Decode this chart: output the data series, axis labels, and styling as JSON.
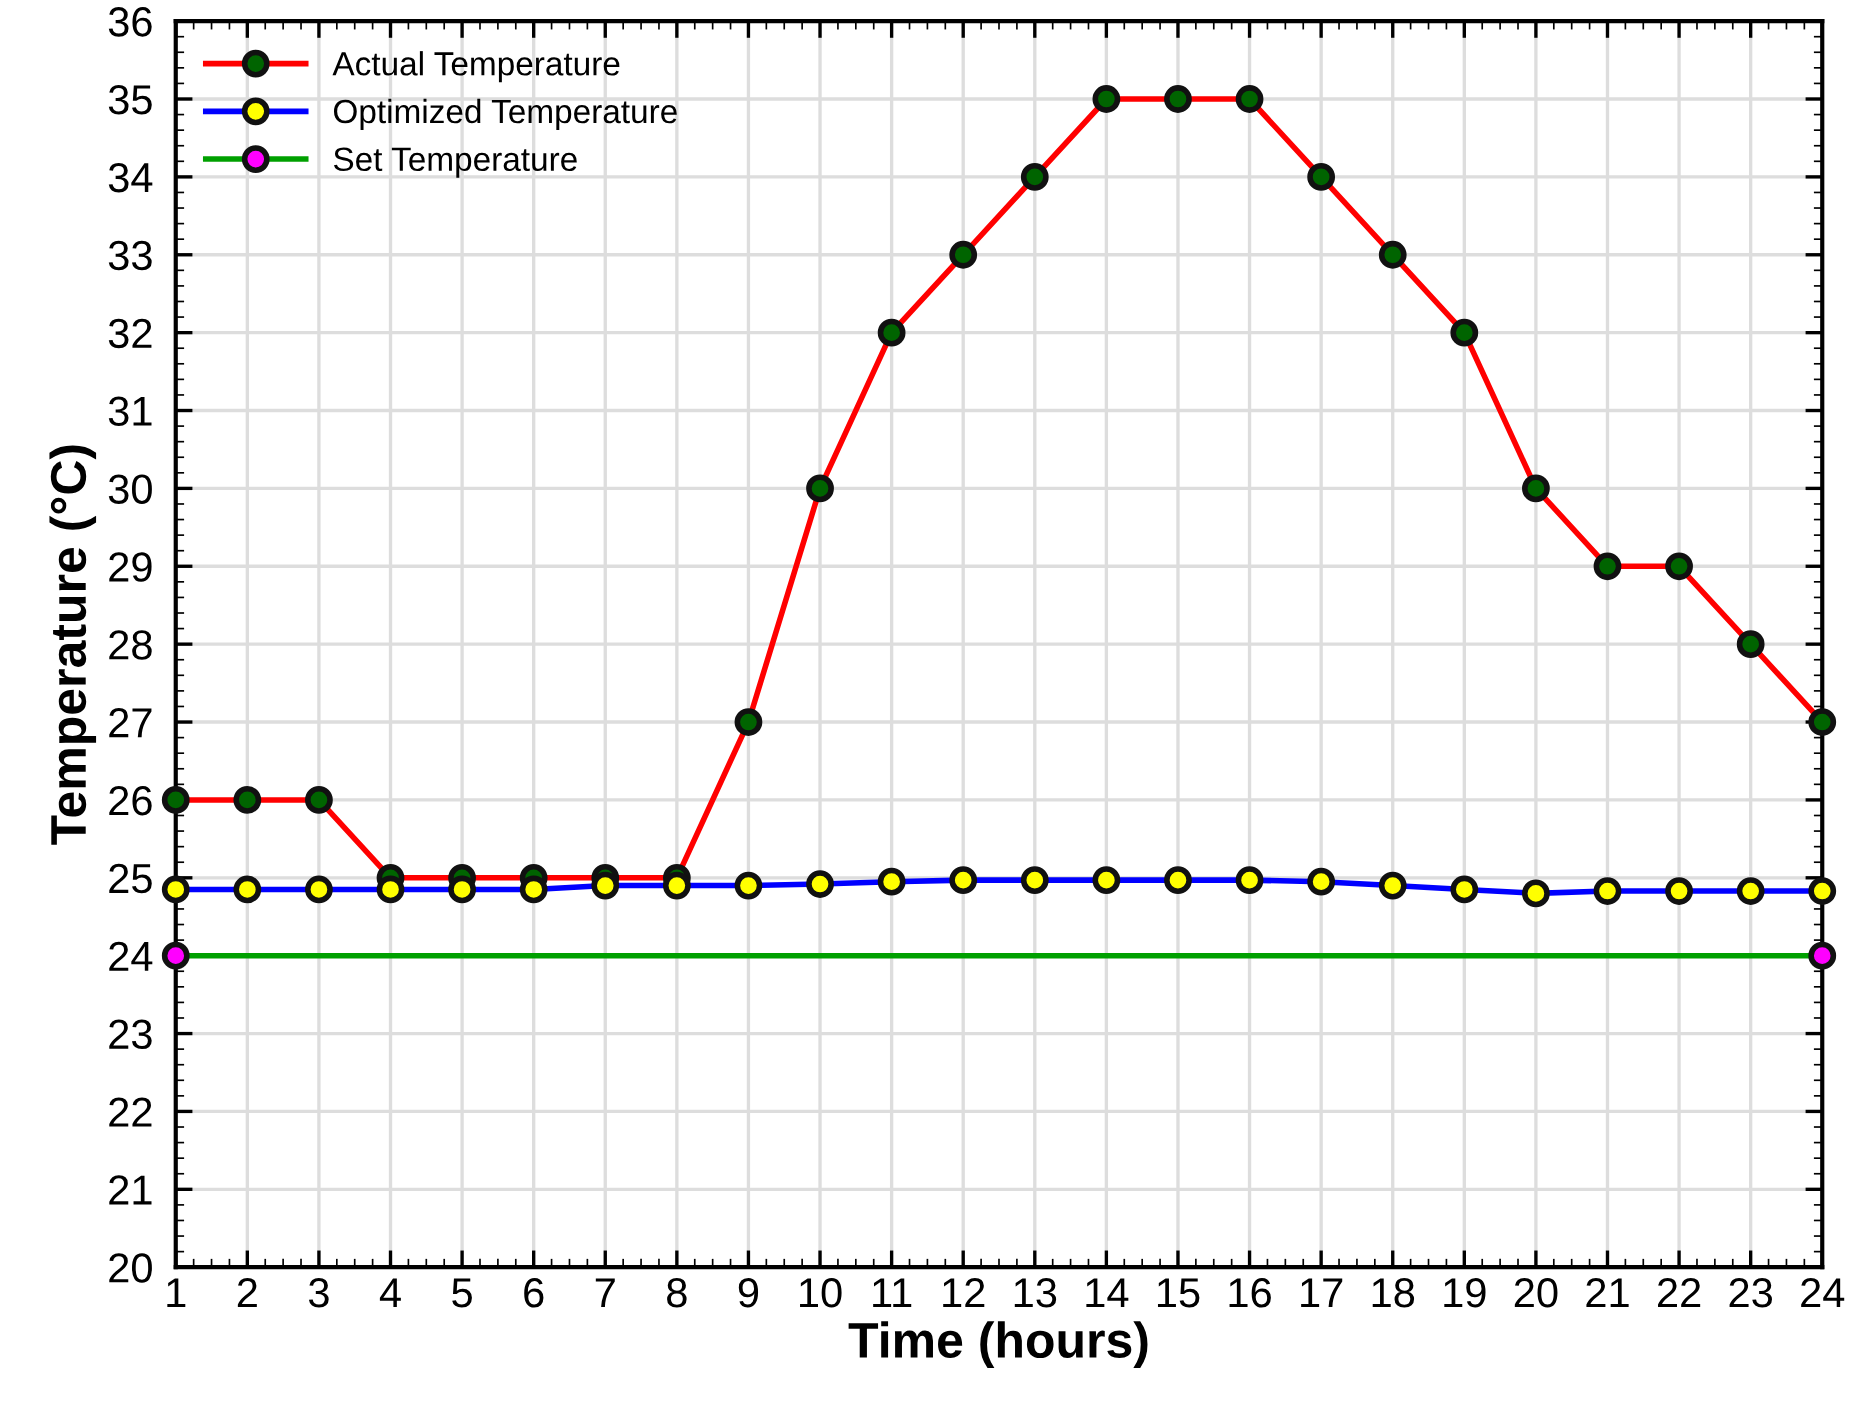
{
  "chart_data": {
    "type": "line",
    "xlabel": "Time (hours)",
    "ylabel": "Temperature (°C)",
    "x": [
      1,
      2,
      3,
      4,
      5,
      6,
      7,
      8,
      9,
      10,
      11,
      12,
      13,
      14,
      15,
      16,
      17,
      18,
      19,
      20,
      21,
      22,
      23,
      24
    ],
    "series": [
      {
        "name": "Actual Temperature",
        "color": "#ff0000",
        "values": [
          26,
          26,
          26,
          25,
          25,
          25,
          25,
          25,
          27,
          30,
          32,
          33,
          34,
          35,
          35,
          35,
          34,
          33,
          32,
          30,
          29,
          29,
          28,
          27
        ]
      },
      {
        "name": "Optimized Temperature",
        "color": "#0000ff",
        "values": [
          24.85,
          24.85,
          24.85,
          24.85,
          24.85,
          24.85,
          24.9,
          24.9,
          24.9,
          24.92,
          24.95,
          24.97,
          24.97,
          24.97,
          24.97,
          24.97,
          24.95,
          24.9,
          24.85,
          24.8,
          24.83,
          24.83,
          24.83,
          24.83
        ]
      },
      {
        "name": "Set Temperature",
        "color": "#00a000",
        "x": [
          1,
          24
        ],
        "values": [
          24,
          24
        ]
      }
    ],
    "xlim": [
      1,
      24
    ],
    "xticks": [
      1,
      2,
      3,
      4,
      5,
      6,
      7,
      8,
      9,
      10,
      11,
      12,
      13,
      14,
      15,
      16,
      17,
      18,
      19,
      20,
      21,
      22,
      23,
      24
    ],
    "ylim": [
      20,
      36
    ],
    "yticks": [
      20,
      21,
      22,
      23,
      24,
      25,
      26,
      27,
      28,
      29,
      30,
      31,
      32,
      33,
      34,
      35,
      36
    ],
    "grid": true,
    "legend": "top left",
    "marker": "circle",
    "line_style": "solid"
  }
}
